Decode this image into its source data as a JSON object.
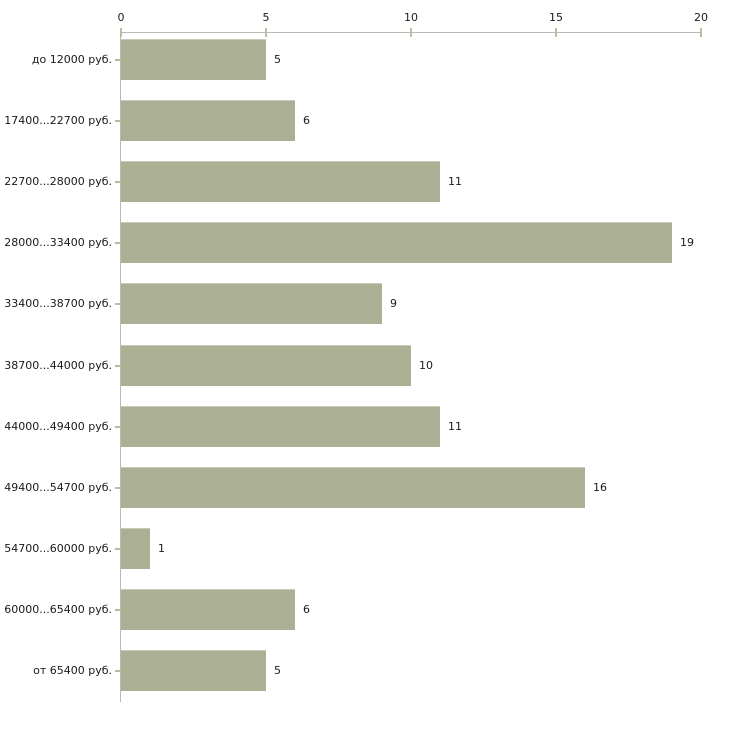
{
  "chart_data": {
    "type": "bar",
    "orientation": "horizontal",
    "title": "",
    "xlabel": "",
    "ylabel": "",
    "categories": [
      "до 12000 руб.",
      "17400...22700 руб.",
      "22700...28000 руб.",
      "28000...33400 руб.",
      "33400...38700 руб.",
      "38700...44000 руб.",
      "44000...49400 руб.",
      "49400...54700 руб.",
      "54700...60000 руб.",
      "60000...65400 руб.",
      "от 65400 руб."
    ],
    "values": [
      5,
      6,
      11,
      19,
      9,
      10,
      11,
      16,
      1,
      6,
      5
    ],
    "x_ticks": [
      0,
      5,
      10,
      15,
      20
    ],
    "xlim": [
      0,
      20
    ],
    "grid": false,
    "legend": false,
    "value_labels_shown": true,
    "axis_position": "top",
    "colors": {
      "bar": "#abb095",
      "axis": "#b9b9b9",
      "tick": "#b9bf9e",
      "text": "#1a1a1a",
      "background": "#ffffff"
    }
  }
}
